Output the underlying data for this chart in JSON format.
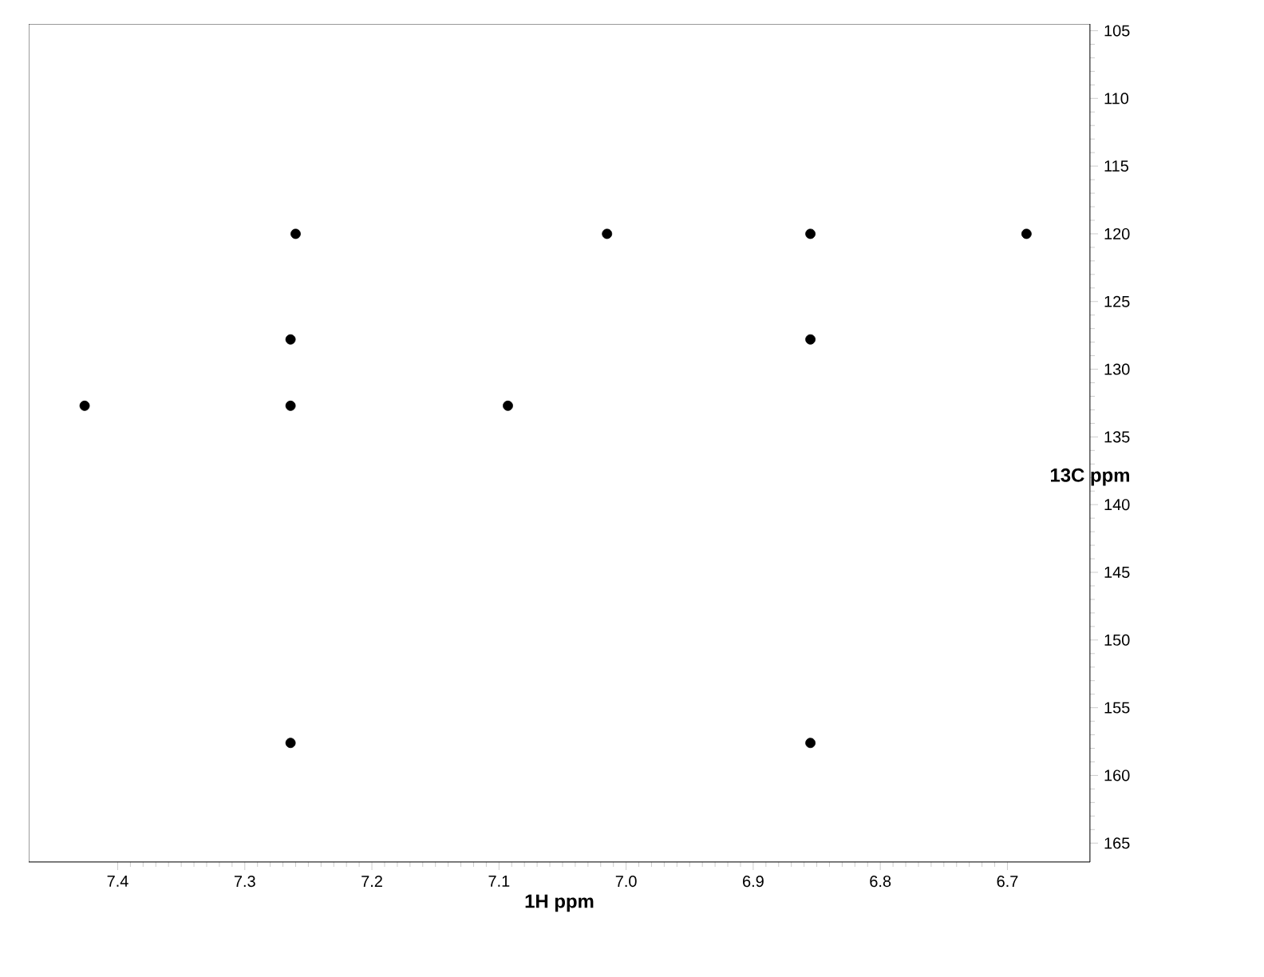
{
  "chart_data": {
    "type": "scatter",
    "xlabel": "1H ppm",
    "ylabel": "13C ppm",
    "x": [
      7.426,
      7.264,
      7.264,
      7.264,
      7.26,
      7.093,
      7.015,
      6.855,
      6.855,
      6.855,
      6.685
    ],
    "series": [
      {
        "color": "#000000",
        "values": [
          132.7,
          127.8,
          132.7,
          157.6,
          120.0,
          132.7,
          120.0,
          120.0,
          127.8,
          157.6,
          120.0
        ]
      }
    ],
    "xlim": [
      7.47,
      6.635
    ],
    "ylim": [
      166.4,
      104.5
    ],
    "xticks": [
      7.4,
      7.3,
      7.2,
      7.1,
      {
        "value": 7.0,
        "label": "7.0"
      },
      6.9,
      6.8,
      6.7
    ],
    "yticks": [
      105,
      110,
      115,
      120,
      125,
      130,
      135,
      140,
      145,
      150,
      155,
      160,
      165
    ],
    "grid": false
  }
}
